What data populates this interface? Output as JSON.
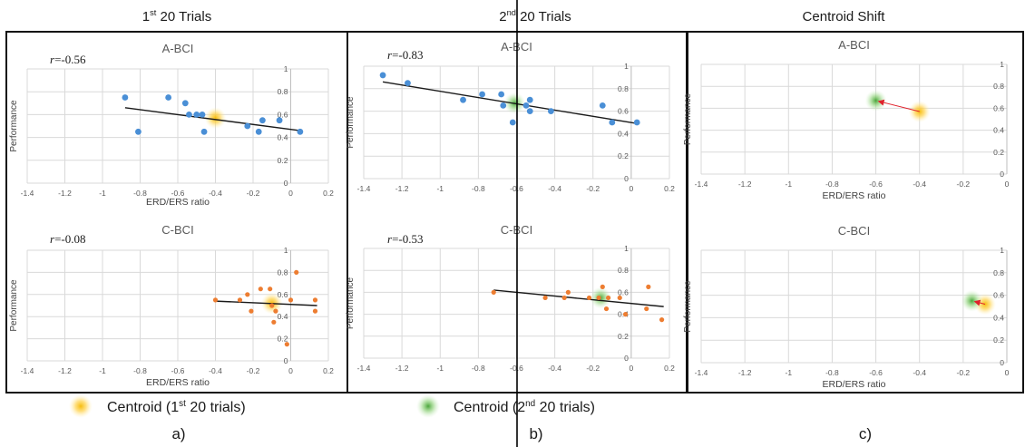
{
  "column_titles": [
    {
      "base": "1",
      "sup": "st",
      "rest": " 20 Trials"
    },
    {
      "base": "2",
      "sup": "nd",
      "rest": " 20 Trials"
    },
    {
      "base": "Centroid Shift",
      "sup": "",
      "rest": ""
    }
  ],
  "panel_letters": [
    "a)",
    "b)",
    "c)"
  ],
  "legend": {
    "items": [
      {
        "label_base": "Centroid (1",
        "label_sup": "st",
        "label_rest": " 20 trials)",
        "color": "#f2c12e"
      },
      {
        "label_base": "Centroid (2",
        "label_sup": "nd",
        "label_rest": " 20 trials)",
        "color": "#5fb84a"
      }
    ]
  },
  "colors": {
    "a_bci_points": "#4a8fd6",
    "c_bci_points": "#ed7d31",
    "trendline": "#1a1a1a",
    "centroid_1": "#f2c12e",
    "centroid_2": "#5fb84a",
    "shift_arrow": "#e0212b"
  },
  "chart_data": [
    {
      "type": "scatter",
      "title": "A-BCI",
      "xlabel": "ERD/ERS ratio",
      "ylabel": "Performance",
      "annotation": "r=-0.56",
      "xlim": [
        -1.4,
        0.2
      ],
      "ylim": [
        0,
        1
      ],
      "xticks": [
        "-1.4",
        "-1.2",
        "-1",
        "-0.8",
        "-0.6",
        "-0.4",
        "-0.2",
        "0",
        "0.2"
      ],
      "yticks": [
        "0",
        "0.2",
        "0.4",
        "0.6",
        "0.8",
        "1"
      ],
      "points": [
        [
          -0.88,
          0.75
        ],
        [
          -0.81,
          0.45
        ],
        [
          -0.65,
          0.75
        ],
        [
          -0.56,
          0.7
        ],
        [
          -0.54,
          0.6
        ],
        [
          -0.5,
          0.6
        ],
        [
          -0.47,
          0.6
        ],
        [
          -0.46,
          0.45
        ],
        [
          -0.23,
          0.5
        ],
        [
          -0.17,
          0.45
        ],
        [
          -0.15,
          0.55
        ],
        [
          -0.06,
          0.55
        ],
        [
          0.05,
          0.45
        ]
      ],
      "trendline": [
        [
          -0.88,
          0.66
        ],
        [
          0.05,
          0.46
        ]
      ],
      "centroid_1": [
        -0.4,
        0.57
      ]
    },
    {
      "type": "scatter",
      "title": "C-BCI",
      "xlabel": "ERD/ERS ratio",
      "ylabel": "Performance",
      "annotation": "r=-0.08",
      "xlim": [
        -1.4,
        0.2
      ],
      "ylim": [
        0,
        1
      ],
      "xticks": [
        "-1.4",
        "-1.2",
        "-1",
        "-0.8",
        "-0.6",
        "-0.4",
        "-0.2",
        "0",
        "0.2"
      ],
      "yticks": [
        "0",
        "0.2",
        "0.4",
        "0.6",
        "0.8",
        "1"
      ],
      "points": [
        [
          -0.4,
          0.55
        ],
        [
          -0.27,
          0.55
        ],
        [
          -0.23,
          0.6
        ],
        [
          -0.21,
          0.45
        ],
        [
          -0.16,
          0.65
        ],
        [
          -0.11,
          0.65
        ],
        [
          -0.1,
          0.5
        ],
        [
          -0.09,
          0.35
        ],
        [
          -0.08,
          0.45
        ],
        [
          -0.02,
          0.15
        ],
        [
          0.0,
          0.55
        ],
        [
          0.03,
          0.8
        ],
        [
          0.13,
          0.55
        ],
        [
          0.13,
          0.45
        ]
      ],
      "trendline": [
        [
          -0.4,
          0.54
        ],
        [
          0.14,
          0.5
        ]
      ],
      "centroid_1": [
        -0.1,
        0.52
      ]
    },
    {
      "type": "scatter",
      "title": "A-BCI",
      "xlabel": "",
      "ylabel": "Performance",
      "annotation": "r=-0.83",
      "xlim": [
        -1.4,
        0.2
      ],
      "ylim": [
        0,
        1
      ],
      "xticks": [
        "-1.4",
        "-1.2",
        "-1",
        "-0.8",
        "-0.6",
        "-0.4",
        "-0.2",
        "0",
        "0.2"
      ],
      "yticks": [
        "0",
        "0.2",
        "0.4",
        "0.6",
        "0.8",
        "1"
      ],
      "points": [
        [
          -1.3,
          0.92
        ],
        [
          -1.17,
          0.85
        ],
        [
          -0.88,
          0.7
        ],
        [
          -0.78,
          0.75
        ],
        [
          -0.68,
          0.75
        ],
        [
          -0.67,
          0.65
        ],
        [
          -0.62,
          0.5
        ],
        [
          -0.55,
          0.65
        ],
        [
          -0.53,
          0.7
        ],
        [
          -0.53,
          0.6
        ],
        [
          -0.42,
          0.6
        ],
        [
          -0.15,
          0.65
        ],
        [
          -0.1,
          0.5
        ],
        [
          0.03,
          0.5
        ]
      ],
      "trendline": [
        [
          -1.3,
          0.86
        ],
        [
          0.03,
          0.49
        ]
      ],
      "centroid_2": [
        -0.61,
        0.67
      ]
    },
    {
      "type": "scatter",
      "title": "C-BCI",
      "xlabel": "",
      "ylabel": "Performance",
      "annotation": "r=-0.53",
      "xlim": [
        -1.4,
        0.2
      ],
      "ylim": [
        0,
        1
      ],
      "xticks": [
        "-1.4",
        "-1.2",
        "-1",
        "-0.8",
        "-0.6",
        "-0.4",
        "-0.2",
        "0",
        "0.2"
      ],
      "yticks": [
        "0",
        "0.2",
        "0.4",
        "0.6",
        "0.8",
        "1"
      ],
      "points": [
        [
          -0.72,
          0.6
        ],
        [
          -0.45,
          0.55
        ],
        [
          -0.35,
          0.55
        ],
        [
          -0.33,
          0.6
        ],
        [
          -0.22,
          0.55
        ],
        [
          -0.17,
          0.55
        ],
        [
          -0.15,
          0.65
        ],
        [
          -0.13,
          0.45
        ],
        [
          -0.12,
          0.55
        ],
        [
          -0.06,
          0.55
        ],
        [
          -0.03,
          0.4
        ],
        [
          0.08,
          0.45
        ],
        [
          0.09,
          0.65
        ],
        [
          0.16,
          0.35
        ]
      ],
      "trendline": [
        [
          -0.72,
          0.62
        ],
        [
          0.17,
          0.47
        ]
      ],
      "centroid_2": [
        -0.16,
        0.55
      ]
    },
    {
      "type": "scatter",
      "title": "A-BCI",
      "xlabel": "ERD/ERS ratio",
      "ylabel": "Performance",
      "xlim": [
        -1.4,
        0
      ],
      "ylim": [
        0,
        1
      ],
      "xticks": [
        "-1.4",
        "-1.2",
        "-1",
        "-0.8",
        "-0.6",
        "-0.4",
        "-0.2",
        "0"
      ],
      "yticks": [
        "0",
        "0.2",
        "0.4",
        "0.6",
        "0.8",
        "1"
      ],
      "centroid_1": [
        -0.4,
        0.57
      ],
      "centroid_2": [
        -0.6,
        0.67
      ]
    },
    {
      "type": "scatter",
      "title": "C-BCI",
      "xlabel": "ERD/ERS ratio",
      "ylabel": "Performance",
      "xlim": [
        -1.4,
        0
      ],
      "ylim": [
        0,
        1
      ],
      "xticks": [
        "-1.4",
        "-1.2",
        "-1",
        "-0.8",
        "-0.6",
        "-0.4",
        "-0.2",
        "0"
      ],
      "yticks": [
        "0",
        "0.2",
        "0.4",
        "0.6",
        "0.8",
        "1"
      ],
      "centroid_1": [
        -0.1,
        0.52
      ],
      "centroid_2": [
        -0.16,
        0.55
      ]
    }
  ]
}
